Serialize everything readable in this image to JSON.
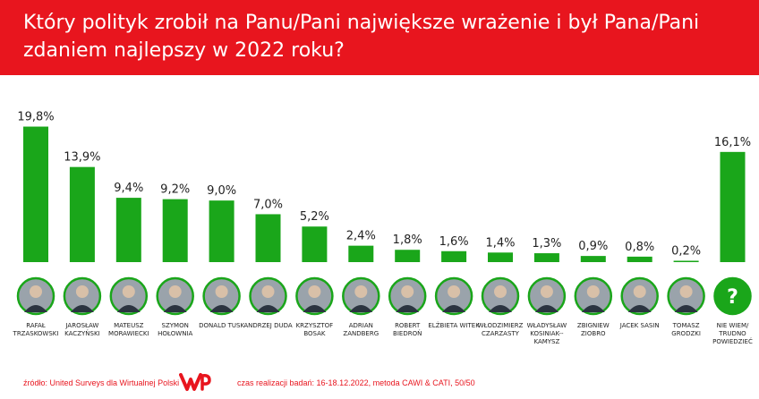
{
  "title": "Który polityk zrobił na Panu/Pani największe wrażenie i był Pana/Pani zdaniem najlepszy w 2022 roku?",
  "chart_data": {
    "type": "bar",
    "unit": "%",
    "categories": [
      "RAFAŁ TRZASKOWSKI",
      "JAROSŁAW KACZYŃSKI",
      "MATEUSZ MORAWIECKI",
      "SZYMON HOŁOWNIA",
      "DONALD TUSK",
      "ANDRZEJ DUDA",
      "KRZYSZTOF BOSAK",
      "ADRIAN ZANDBERG",
      "ROBERT BIEDROŃ",
      "ELŻBIETA WITEK",
      "WŁODZIMIERZ CZARZASTY",
      "WŁADYSŁAW KOSINIAK--KAMYSZ",
      "ZBIGNIEW ZIOBRO",
      "JACEK SASIN",
      "TOMASZ GRODZKI",
      "NIE WIEM/ TRUDNO POWIEDZIEĆ"
    ],
    "values": [
      19.8,
      13.9,
      9.4,
      9.2,
      9.0,
      7.0,
      5.2,
      2.4,
      1.8,
      1.6,
      1.4,
      1.3,
      0.9,
      0.8,
      0.2,
      16.1
    ],
    "value_labels": [
      "19,8%",
      "13,9%",
      "9,4%",
      "9,2%",
      "9,0%",
      "7,0%",
      "5,2%",
      "2,4%",
      "1,8%",
      "1,6%",
      "1,4%",
      "1,3%",
      "0,9%",
      "0,8%",
      "0,2%",
      "16,1%"
    ],
    "ylim": [
      0,
      20
    ],
    "grid": false,
    "legend": "none",
    "colors": {
      "bar": "#1aa61a",
      "header": "#e8151e",
      "avatar_border": "#1aa61a"
    },
    "dont_know_symbol": "?"
  },
  "footer": {
    "source": "źródło: United Surveys dla Wirtualnej Polski",
    "logo_text": "WP",
    "meta": "czas realizacji badań: 16-18.12.2022, metoda CAWI & CATI, 50/50"
  }
}
